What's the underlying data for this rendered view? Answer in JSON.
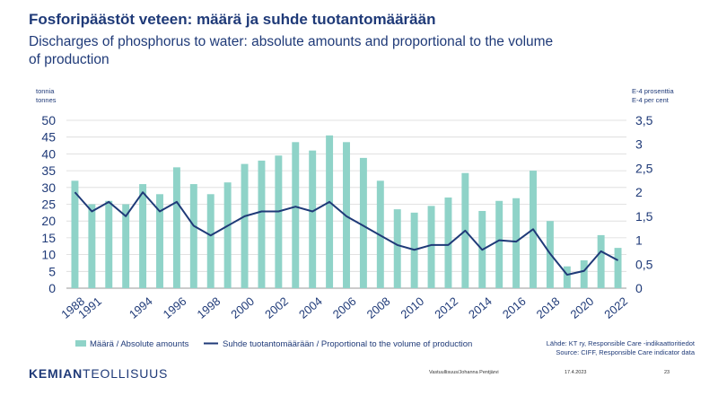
{
  "title_fi": "Fosforipäästöt veteen: määrä ja suhde tuotantomäärään",
  "title_en": "Discharges of phosphorus to water: absolute amounts and proportional to the volume of production",
  "chart_data": {
    "type": "bar",
    "left_axis_unit": [
      "tonnia",
      "tonnes"
    ],
    "right_axis_unit": [
      "E-4 prosenttia",
      "E-4 per cent"
    ],
    "ylim_left": [
      0,
      50
    ],
    "ylim_right": [
      0,
      3.5
    ],
    "left_ticks": [
      "0",
      "5",
      "10",
      "15",
      "20",
      "25",
      "30",
      "35",
      "40",
      "45",
      "50"
    ],
    "right_ticks": [
      "0",
      "0,5",
      "1",
      "1,5",
      "2",
      "2,5",
      "3",
      "3,5"
    ],
    "categories": [
      1988,
      1991,
      1992,
      1993,
      1994,
      1995,
      1996,
      1997,
      1998,
      1999,
      2000,
      2001,
      2002,
      2003,
      2004,
      2005,
      2006,
      2007,
      2008,
      2009,
      2010,
      2011,
      2012,
      2013,
      2014,
      2015,
      2016,
      2017,
      2018,
      2019,
      2020,
      2021,
      2022
    ],
    "x_tick_labels": [
      "1988",
      "1991",
      "1994",
      "1996",
      "1998",
      "2000",
      "2002",
      "2004",
      "2006",
      "2008",
      "2010",
      "2012",
      "2014",
      "2016",
      "2018",
      "2020",
      "2022"
    ],
    "series": [
      {
        "name": "Määrä / Absolute amounts",
        "type": "bar",
        "axis": "left",
        "color": "#8fd3c8",
        "values": [
          32,
          25,
          26,
          25,
          31,
          28,
          36,
          31,
          28,
          31.5,
          37,
          38,
          39.5,
          43.5,
          41,
          45.5,
          43.5,
          38.8,
          32,
          23.5,
          22.5,
          24.5,
          27,
          34.3,
          23,
          26,
          26.8,
          35,
          20,
          6.5,
          8.3,
          15.8,
          12
        ]
      },
      {
        "name": "Suhde tuotantomäärään  /  Proportional to the volume of production",
        "type": "line",
        "axis": "right",
        "color": "#1f3a78",
        "values": [
          2.0,
          1.6,
          1.8,
          1.5,
          2.0,
          1.6,
          1.8,
          1.3,
          1.1,
          1.3,
          1.5,
          1.6,
          1.6,
          1.7,
          1.6,
          1.8,
          1.5,
          1.3,
          1.1,
          0.9,
          0.8,
          0.9,
          0.9,
          1.2,
          0.8,
          1.0,
          0.97,
          1.23,
          0.72,
          0.28,
          0.36,
          0.77,
          0.58
        ]
      }
    ],
    "grid": true,
    "legend_position": "bottom-left"
  },
  "source": {
    "line1": "Lähde: KT ry, Responsible Care -indikaattoritiedot",
    "line2": "Source: CIFF, Responsible Care indicator data"
  },
  "footer": {
    "logo_bold": "KEMIAN",
    "logo_regular": "TEOLLISUUS",
    "author": "Vastuullisuus/Johanna Pentjärvi",
    "date": "17.4.2023",
    "page": "23"
  }
}
